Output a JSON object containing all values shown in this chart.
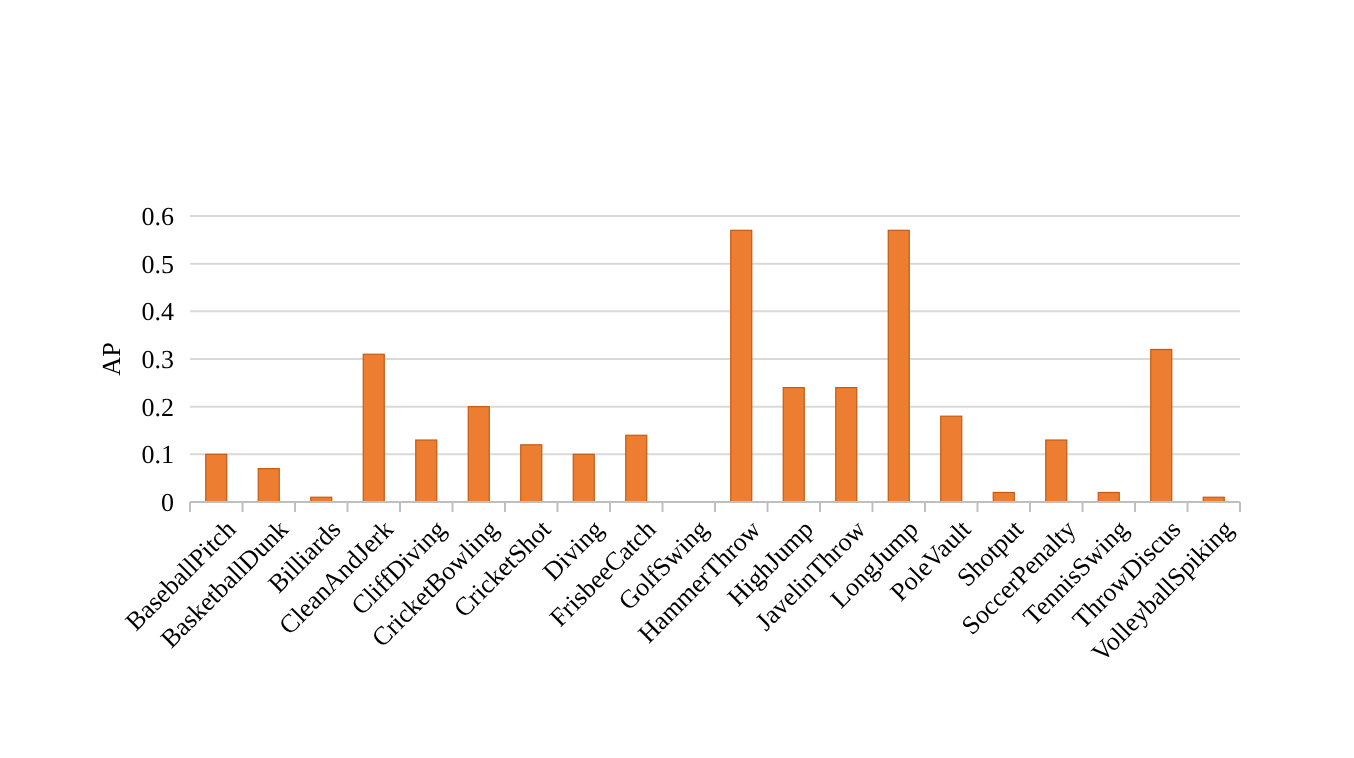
{
  "chart_data": {
    "type": "bar",
    "ylabel": "AP",
    "categories": [
      "BaseballPitch",
      "BasketballDunk",
      "Billiards",
      "CleanAndJerk",
      "CliffDiving",
      "CricketBowling",
      "CricketShot",
      "Diving",
      "FrisbeeCatch",
      "GolfSwing",
      "HammerThrow",
      "HighJump",
      "JavelinThrow",
      "LongJump",
      "PoleVault",
      "Shotput",
      "SoccerPenalty",
      "TennisSwing",
      "ThrowDiscus",
      "VolleyballSpiking"
    ],
    "values": [
      0.1,
      0.07,
      0.01,
      0.31,
      0.13,
      0.2,
      0.12,
      0.1,
      0.14,
      0,
      0.57,
      0.24,
      0.24,
      0.57,
      0.18,
      0.02,
      0.13,
      0.02,
      0.32,
      0.01
    ],
    "color": "#ed7d31",
    "ylim": [
      0,
      0.6
    ],
    "yticks": [
      0,
      0.1,
      0.2,
      0.3,
      0.4,
      0.5,
      0.6
    ],
    "grid": "y"
  }
}
